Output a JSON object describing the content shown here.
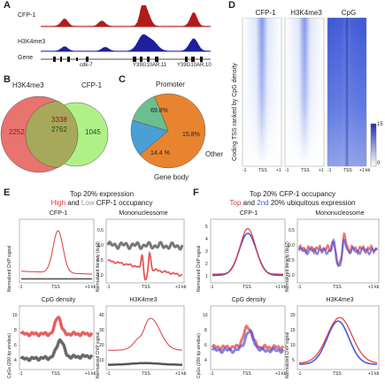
{
  "panels": {
    "A": {
      "label": "A",
      "tracks": [
        {
          "name": "CFP-1",
          "color": "#b31b1b"
        },
        {
          "name": "H3K4me3",
          "color": "#1c1f9e"
        }
      ],
      "gene_track": "Gene",
      "genes": [
        "cdk-7",
        "Y39G10AR.11",
        "Y39G10AR.10"
      ]
    },
    "B": {
      "label": "B",
      "set_left": "H3K4me3",
      "set_right": "CFP-1",
      "only_left": "2252",
      "overlap_top": "3338",
      "overlap_bottom": "2762",
      "only_right": "1045",
      "color_left": "#e8736f",
      "color_right": "#a6f07a"
    },
    "C": {
      "label": "C",
      "slices": [
        {
          "name": "Promoter",
          "pct": "69.8%",
          "value": 69.8,
          "color": "#e8842f"
        },
        {
          "name": "Other",
          "pct": "15.8%",
          "value": 15.8,
          "color": "#4a9fd5"
        },
        {
          "name": "Gene body",
          "pct": "14.4 %",
          "value": 14.4,
          "color": "#6bbf8e"
        }
      ]
    },
    "D": {
      "label": "D",
      "columns": [
        "CFP-1",
        "H3K4me3",
        "CpG"
      ],
      "ylabel": "Coding TSS ranked by CpG density",
      "xticks": [
        "-1",
        "TSS",
        "+1"
      ],
      "xunit": "kb",
      "colorbar_max": "15",
      "colorbar_min": "0"
    },
    "E": {
      "label": "E",
      "title_line1": "Top 20% expression",
      "title_high": "High",
      "title_and": "and",
      "title_low": "Low",
      "title_rest": "CFP-1 occupancy",
      "color_high": "#e03a3a",
      "color_low": "#8a8a8a",
      "plots": [
        {
          "title": "CFP-1",
          "ylabel": "Normalized ChIP signal"
        },
        {
          "title": "Mononucleosome",
          "ylabel": "Normalized density (log2)"
        },
        {
          "title": "CpG density",
          "ylabel": "CpGs (200 bp window)"
        },
        {
          "title": "H3K4me3",
          "ylabel": "Normalized ChIP signal"
        }
      ],
      "mono_ticks": [
        "0.5",
        "0.0",
        "-0.5",
        "-1.0"
      ],
      "cpg_ticks": [
        "10",
        "8",
        "6",
        "4"
      ],
      "h3_ticks": [
        "40",
        "30",
        "20",
        "10"
      ],
      "xticks": [
        "-1",
        "TSS",
        "+1 kb"
      ]
    },
    "F": {
      "label": "F",
      "title_line1": "Top 20% CFP-1 occupancy",
      "title_top": "Top",
      "title_and": "and",
      "title_second": "2nd",
      "title_rest": "20% ubiquitous expression",
      "color_top": "#e03a3a",
      "color_second": "#4a55e0",
      "plots": [
        {
          "title": "CFP-1",
          "ylabel": "Normalized ChIP signal"
        },
        {
          "title": "Mononucleosome",
          "ylabel": "Normalized density (log2)"
        },
        {
          "title": "CpG density",
          "ylabel": "CpGs (200 bp window)"
        },
        {
          "title": "H3K4me3",
          "ylabel": "Normalized ChIP signal"
        }
      ],
      "cfp_ticks": [
        "5",
        "4",
        "3",
        "2",
        "1"
      ],
      "mono_ticks": [
        "0.5",
        "0.0",
        "-0.5",
        "-1.0"
      ],
      "cpg_ticks": [
        "10",
        "8",
        "6",
        "4"
      ],
      "h3_ticks": [
        "20",
        "15",
        "10",
        "5"
      ],
      "xticks": [
        "-1",
        "TSS",
        "+1 kb"
      ]
    }
  }
}
